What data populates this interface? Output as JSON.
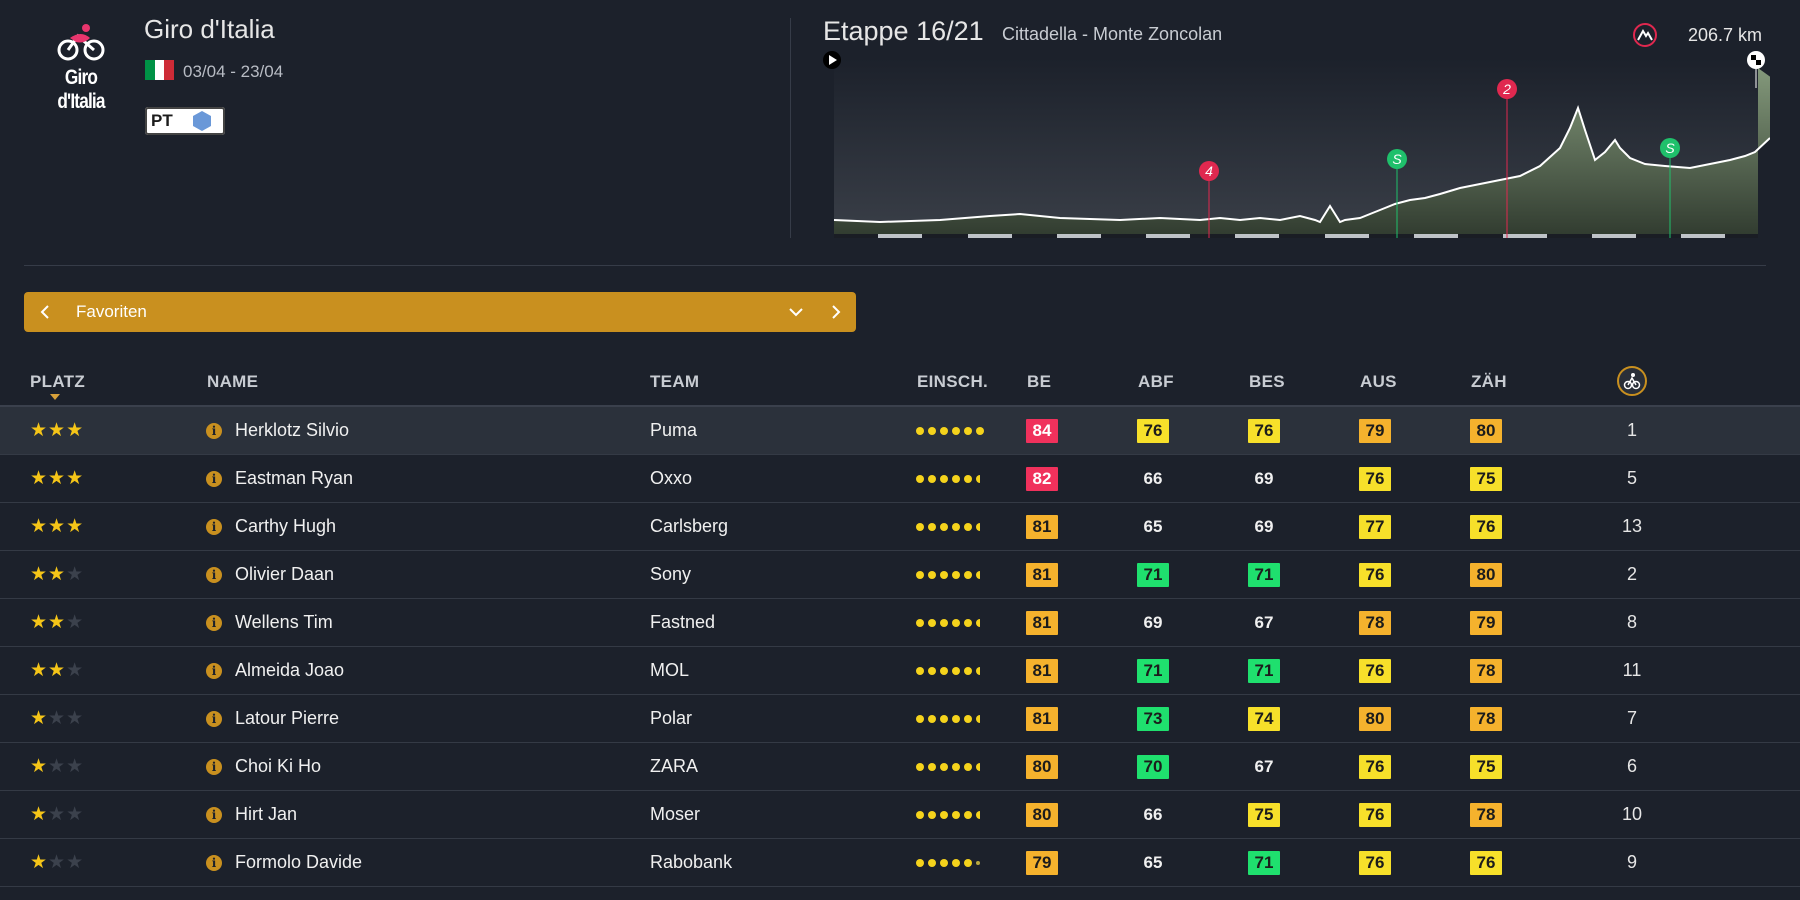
{
  "header": {
    "logo_text": "Giro d'Italia",
    "race_title": "Giro d'Italia",
    "flag_colors": [
      "#009246",
      "#ffffff",
      "#ce2b37"
    ],
    "dates": "03/04 - 23/04",
    "category_badge": "PT",
    "category_icon": "hexagon-icon"
  },
  "stage": {
    "title": "Etappe 16/21",
    "route": "Cittadella - Monte Zoncolan",
    "distance": "206.7 km",
    "markers": [
      {
        "label": "4",
        "type": "climb",
        "color": "#e0284f"
      },
      {
        "label": "S",
        "type": "sprint",
        "color": "#1fc06b"
      },
      {
        "label": "2",
        "type": "climb",
        "color": "#e0284f"
      },
      {
        "label": "S",
        "type": "sprint",
        "color": "#1fc06b"
      }
    ]
  },
  "filter": {
    "label": "Favoriten"
  },
  "table": {
    "columns": {
      "platz": "PLATZ",
      "name": "NAME",
      "team": "TEAM",
      "einsch": "EINSCH.",
      "be": "BE",
      "abf": "ABF",
      "bes": "BES",
      "aus": "AUS",
      "zah": "ZÄH"
    },
    "rows": [
      {
        "stars": 3,
        "name": "Herklotz Silvio",
        "team": "Puma",
        "form": [
          1,
          1,
          1,
          1,
          1,
          1
        ],
        "be": {
          "v": "84",
          "c": "red"
        },
        "abf": {
          "v": "76",
          "c": "yellow"
        },
        "bes": {
          "v": "76",
          "c": "yellow"
        },
        "aus": {
          "v": "79",
          "c": "orange"
        },
        "zah": {
          "v": "80",
          "c": "orange"
        },
        "rank": "1"
      },
      {
        "stars": 3,
        "name": "Eastman Ryan",
        "team": "Oxxo",
        "form": [
          1,
          1,
          1,
          1,
          1,
          0.5
        ],
        "be": {
          "v": "82",
          "c": "red"
        },
        "abf": {
          "v": "66",
          "c": "plain"
        },
        "bes": {
          "v": "69",
          "c": "plain"
        },
        "aus": {
          "v": "76",
          "c": "yellow"
        },
        "zah": {
          "v": "75",
          "c": "yellow"
        },
        "rank": "5"
      },
      {
        "stars": 3,
        "name": "Carthy Hugh",
        "team": "Carlsberg",
        "form": [
          1,
          1,
          1,
          1,
          1,
          0.5
        ],
        "be": {
          "v": "81",
          "c": "orange"
        },
        "abf": {
          "v": "65",
          "c": "plain"
        },
        "bes": {
          "v": "69",
          "c": "plain"
        },
        "aus": {
          "v": "77",
          "c": "yellow"
        },
        "zah": {
          "v": "76",
          "c": "yellow"
        },
        "rank": "13"
      },
      {
        "stars": 2,
        "name": "Olivier Daan",
        "team": "Sony",
        "form": [
          1,
          1,
          1,
          1,
          1,
          0.5
        ],
        "be": {
          "v": "81",
          "c": "orange"
        },
        "abf": {
          "v": "71",
          "c": "green"
        },
        "bes": {
          "v": "71",
          "c": "green"
        },
        "aus": {
          "v": "76",
          "c": "yellow"
        },
        "zah": {
          "v": "80",
          "c": "orange"
        },
        "rank": "2"
      },
      {
        "stars": 2,
        "name": "Wellens Tim",
        "team": "Fastned",
        "form": [
          1,
          1,
          1,
          1,
          1,
          0.5
        ],
        "be": {
          "v": "81",
          "c": "orange"
        },
        "abf": {
          "v": "69",
          "c": "plain"
        },
        "bes": {
          "v": "67",
          "c": "plain"
        },
        "aus": {
          "v": "78",
          "c": "orange"
        },
        "zah": {
          "v": "79",
          "c": "orange"
        },
        "rank": "8"
      },
      {
        "stars": 2,
        "name": "Almeida Joao",
        "team": "MOL",
        "form": [
          1,
          1,
          1,
          1,
          1,
          0.5
        ],
        "be": {
          "v": "81",
          "c": "orange"
        },
        "abf": {
          "v": "71",
          "c": "green"
        },
        "bes": {
          "v": "71",
          "c": "green"
        },
        "aus": {
          "v": "76",
          "c": "yellow"
        },
        "zah": {
          "v": "78",
          "c": "orange"
        },
        "rank": "11"
      },
      {
        "stars": 1,
        "name": "Latour Pierre",
        "team": "Polar",
        "form": [
          1,
          1,
          1,
          1,
          1,
          0.5
        ],
        "be": {
          "v": "81",
          "c": "orange"
        },
        "abf": {
          "v": "73",
          "c": "green"
        },
        "bes": {
          "v": "74",
          "c": "yellow"
        },
        "aus": {
          "v": "80",
          "c": "orange"
        },
        "zah": {
          "v": "78",
          "c": "orange"
        },
        "rank": "7"
      },
      {
        "stars": 1,
        "name": "Choi Ki Ho",
        "team": "ZARA",
        "form": [
          1,
          1,
          1,
          1,
          1,
          0.5
        ],
        "be": {
          "v": "80",
          "c": "orange"
        },
        "abf": {
          "v": "70",
          "c": "green"
        },
        "bes": {
          "v": "67",
          "c": "plain"
        },
        "aus": {
          "v": "76",
          "c": "yellow"
        },
        "zah": {
          "v": "75",
          "c": "yellow"
        },
        "rank": "6"
      },
      {
        "stars": 1,
        "name": "Hirt Jan",
        "team": "Moser",
        "form": [
          1,
          1,
          1,
          1,
          1,
          0.5
        ],
        "be": {
          "v": "80",
          "c": "orange"
        },
        "abf": {
          "v": "66",
          "c": "plain"
        },
        "bes": {
          "v": "75",
          "c": "yellow"
        },
        "aus": {
          "v": "76",
          "c": "yellow"
        },
        "zah": {
          "v": "78",
          "c": "orange"
        },
        "rank": "10"
      },
      {
        "stars": 1,
        "name": "Formolo Davide",
        "team": "Rabobank",
        "form": [
          1,
          1,
          1,
          1,
          1,
          0.2
        ],
        "be": {
          "v": "79",
          "c": "orange"
        },
        "abf": {
          "v": "65",
          "c": "plain"
        },
        "bes": {
          "v": "71",
          "c": "green"
        },
        "aus": {
          "v": "76",
          "c": "yellow"
        },
        "zah": {
          "v": "76",
          "c": "yellow"
        },
        "rank": "9"
      }
    ],
    "selected_row": 0
  }
}
